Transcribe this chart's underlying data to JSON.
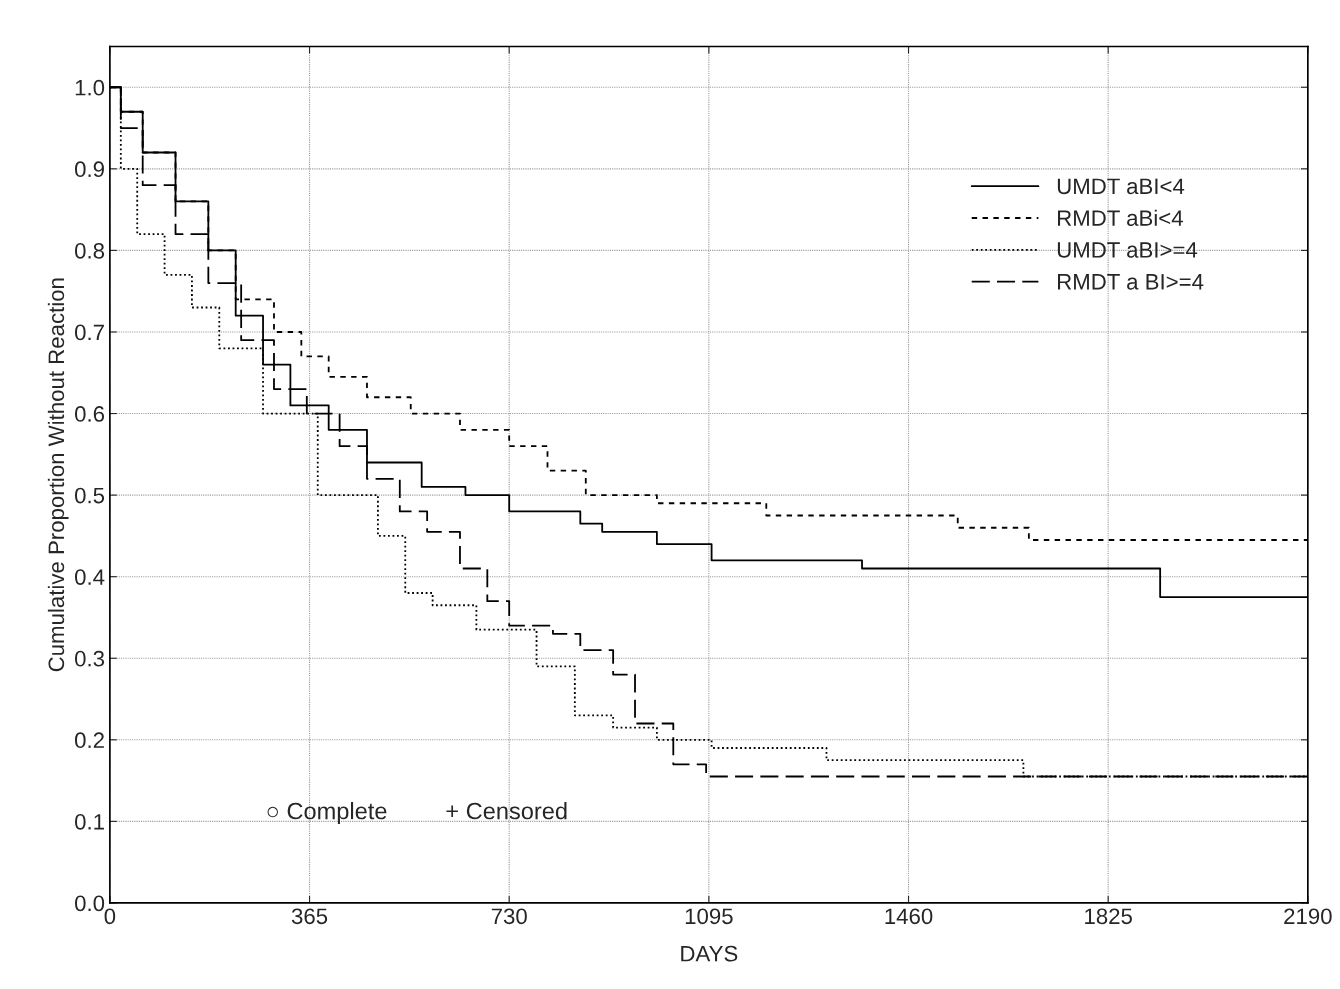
{
  "chart_data": {
    "type": "step",
    "xlabel": "DAYS",
    "ylabel": "Cumulative Proportion Without Reaction",
    "xlim": [
      0,
      2190
    ],
    "xticks": [
      0,
      365,
      730,
      1095,
      1460,
      1825,
      2190
    ],
    "ylim": [
      0,
      1.05
    ],
    "yticks": [
      {
        "value": 0,
        "label": "0.0"
      },
      0.1,
      0.2,
      0.3,
      0.4,
      0.5,
      0.6,
      0.7,
      0.8,
      0.9,
      {
        "value": 1,
        "label": "1.0"
      }
    ],
    "grid": true,
    "legend": "top right",
    "marker": "none",
    "annotations": [
      "○ Complete",
      "+ Censored"
    ],
    "series": [
      {
        "name": "UMDT aBI<4",
        "color": "#000000",
        "line_style": "solid",
        "x": [
          0,
          20,
          60,
          120,
          180,
          230,
          280,
          330,
          400,
          470,
          570,
          650,
          730,
          860,
          900,
          1000,
          1100,
          1375,
          1920,
          2190
        ],
        "values": [
          1.0,
          0.97,
          0.92,
          0.86,
          0.8,
          0.72,
          0.66,
          0.61,
          0.58,
          0.54,
          0.51,
          0.5,
          0.48,
          0.465,
          0.455,
          0.44,
          0.42,
          0.41,
          0.375,
          0.375
        ]
      },
      {
        "name": "RMDT aBi<4",
        "color": "#000000",
        "line_style": "dashed",
        "x": [
          0,
          20,
          60,
          120,
          180,
          230,
          300,
          350,
          400,
          470,
          550,
          640,
          730,
          800,
          870,
          1000,
          1200,
          1550,
          1680,
          2190
        ],
        "values": [
          1.0,
          0.97,
          0.92,
          0.86,
          0.8,
          0.74,
          0.7,
          0.67,
          0.645,
          0.62,
          0.6,
          0.58,
          0.56,
          0.53,
          0.5,
          0.49,
          0.475,
          0.46,
          0.445,
          0.445
        ]
      },
      {
        "name": "UMDT aBI>=4",
        "color": "#000000",
        "line_style": "dotted",
        "x": [
          0,
          20,
          50,
          100,
          150,
          200,
          280,
          380,
          490,
          540,
          590,
          670,
          780,
          850,
          920,
          1000,
          1100,
          1310,
          1670,
          2190
        ],
        "values": [
          1.0,
          0.9,
          0.82,
          0.77,
          0.73,
          0.68,
          0.6,
          0.5,
          0.45,
          0.38,
          0.365,
          0.335,
          0.29,
          0.23,
          0.215,
          0.2,
          0.19,
          0.175,
          0.155,
          0.155
        ]
      },
      {
        "name": "RMDT a BI>=4",
        "color": "#000000",
        "line_style": "long dash",
        "x": [
          0,
          20,
          60,
          120,
          180,
          240,
          300,
          360,
          420,
          470,
          530,
          580,
          640,
          690,
          730,
          810,
          860,
          920,
          960,
          1030,
          1090,
          2190
        ],
        "values": [
          1.0,
          0.95,
          0.88,
          0.82,
          0.76,
          0.69,
          0.63,
          0.6,
          0.56,
          0.52,
          0.48,
          0.455,
          0.41,
          0.37,
          0.34,
          0.33,
          0.31,
          0.28,
          0.22,
          0.17,
          0.155,
          0.155
        ]
      }
    ]
  }
}
